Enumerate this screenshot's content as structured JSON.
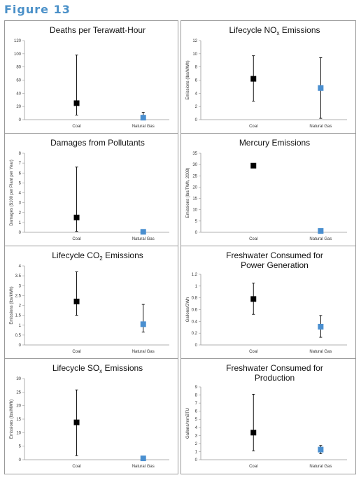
{
  "figure": {
    "title": "Figure 13"
  },
  "colors": {
    "accent": "#4a90c8",
    "coal": "#000000",
    "gas": "#4a8fd0",
    "axis": "#999999"
  },
  "chart_data": [
    {
      "type": "scatter",
      "title": "Deaths per Terawatt-Hour",
      "title_lines": [
        "Deaths per Terawatt-Hour"
      ],
      "title_sub": "",
      "ylabel": "",
      "categories": [
        "Coal",
        "Natural Gas"
      ],
      "ylim": [
        0,
        120
      ],
      "yticks": [
        0,
        20,
        40,
        60,
        80,
        100,
        120
      ],
      "grid": false,
      "points": [
        {
          "category": "Coal",
          "value": 25,
          "low": 7,
          "high": 98
        },
        {
          "category": "Natural Gas",
          "value": 3,
          "low": 0,
          "high": 11
        }
      ]
    },
    {
      "type": "scatter",
      "title": "Lifecycle NOx Emissions",
      "title_lines": [
        "Lifecycle NO|x| Emissions"
      ],
      "title_sub": "x",
      "ylabel": "Emissions (lbs/MWh)",
      "categories": [
        "Coal",
        "Natural Gas"
      ],
      "ylim": [
        0,
        12
      ],
      "yticks": [
        0,
        2,
        4,
        6,
        8,
        10,
        12
      ],
      "grid": false,
      "points": [
        {
          "category": "Coal",
          "value": 6.2,
          "low": 2.8,
          "high": 9.7
        },
        {
          "category": "Natural Gas",
          "value": 4.8,
          "low": 0.2,
          "high": 9.4
        }
      ]
    },
    {
      "type": "scatter",
      "title": "Damages from Pollutants",
      "title_lines": [
        "Damages from Pollutants"
      ],
      "title_sub": "",
      "ylabel": "Damages ($100 per Plant per Year)",
      "categories": [
        "Coal",
        "Natural Gas"
      ],
      "ylim": [
        0,
        8
      ],
      "yticks": [
        0,
        1,
        2,
        3,
        4,
        5,
        6,
        7,
        8
      ],
      "grid": false,
      "points": [
        {
          "category": "Coal",
          "value": 1.5,
          "low": 0.1,
          "high": 6.6
        },
        {
          "category": "Natural Gas",
          "value": 0.05,
          "low": null,
          "high": null
        }
      ]
    },
    {
      "type": "scatter",
      "title": "Mercury Emissions",
      "title_lines": [
        "Mercury Emissions"
      ],
      "title_sub": "",
      "ylabel": "Emissions (lbs/TWh, 2008)",
      "categories": [
        "Coal",
        "Natural Gas"
      ],
      "ylim": [
        0,
        35
      ],
      "yticks": [
        0,
        5,
        10,
        15,
        20,
        25,
        30,
        35
      ],
      "grid": false,
      "points": [
        {
          "category": "Coal",
          "value": 29.5,
          "low": null,
          "high": null
        },
        {
          "category": "Natural Gas",
          "value": 0.6,
          "low": null,
          "high": null
        }
      ]
    },
    {
      "type": "scatter",
      "title": "Lifecycle CO2 Emissions",
      "title_lines": [
        "Lifecycle CO|2| Emissions"
      ],
      "title_sub": "2",
      "ylabel": "Emissions (lbs/kWh)",
      "categories": [
        "Coal",
        "Natural Gas"
      ],
      "ylim": [
        0,
        4
      ],
      "yticks": [
        0,
        0.5,
        1,
        1.5,
        2,
        2.5,
        3,
        3.5,
        4
      ],
      "grid": false,
      "points": [
        {
          "category": "Coal",
          "value": 2.2,
          "low": 1.5,
          "high": 3.7
        },
        {
          "category": "Natural Gas",
          "value": 1.05,
          "low": 0.65,
          "high": 2.05
        }
      ]
    },
    {
      "type": "scatter",
      "title": "Freshwater Consumed for Power Generation",
      "title_lines": [
        "Freshwater Consumed for",
        "Power Generation"
      ],
      "title_sub": "",
      "ylabel": "Gallons/GWh",
      "categories": [
        "Coal",
        "Natural Gas"
      ],
      "ylim": [
        0,
        1.2
      ],
      "yticks": [
        0,
        0.2,
        0.4,
        0.6,
        0.8,
        1,
        1.2
      ],
      "grid": false,
      "points": [
        {
          "category": "Coal",
          "value": 0.78,
          "low": 0.52,
          "high": 1.05
        },
        {
          "category": "Natural Gas",
          "value": 0.31,
          "low": 0.13,
          "high": 0.5
        }
      ]
    },
    {
      "type": "scatter",
      "title": "Lifecycle SOx Emissions",
      "title_lines": [
        "Lifecycle SO|x| Emissions"
      ],
      "title_sub": "x",
      "ylabel": "Emissions (lbs/MWh)",
      "categories": [
        "Coal",
        "Natural Gas"
      ],
      "ylim": [
        0,
        30
      ],
      "yticks": [
        0,
        5,
        10,
        15,
        20,
        25,
        30
      ],
      "grid": false,
      "points": [
        {
          "category": "Coal",
          "value": 13.8,
          "low": 1.5,
          "high": 25.8
        },
        {
          "category": "Natural Gas",
          "value": 0.5,
          "low": null,
          "high": null
        }
      ]
    },
    {
      "type": "scatter",
      "title": "Freshwater Consumed for Production",
      "title_lines": [
        "Freshwater Consumed for",
        "Production"
      ],
      "title_sub": "",
      "ylabel": "Gallons/mmBTU",
      "categories": [
        "Coal",
        "Natural Gas"
      ],
      "ylim": [
        0,
        9
      ],
      "yticks": [
        0,
        1,
        2,
        3,
        4,
        5,
        6,
        7,
        8,
        9
      ],
      "grid": false,
      "points": [
        {
          "category": "Coal",
          "value": 3.35,
          "low": 1.1,
          "high": 8.1
        },
        {
          "category": "Natural Gas",
          "value": 1.25,
          "low": 0.75,
          "high": 1.75
        }
      ]
    }
  ]
}
